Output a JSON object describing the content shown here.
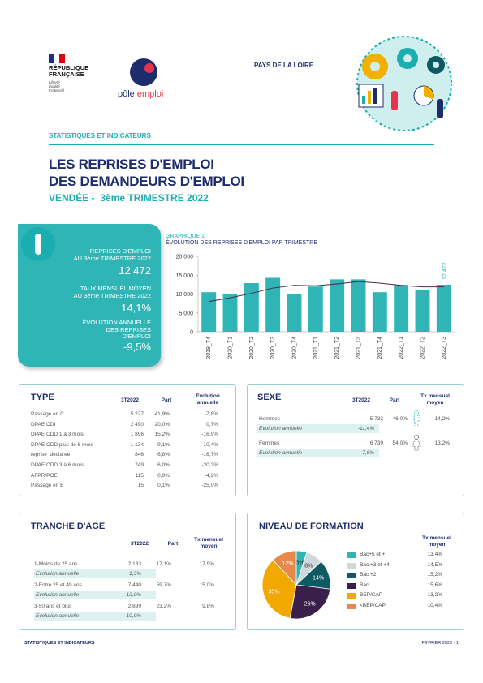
{
  "header": {
    "republic": [
      "RÉPUBLIQUE",
      "FRANÇAISE"
    ],
    "motto": [
      "Liberté",
      "Égalité",
      "Fraternité"
    ],
    "pe_logo": [
      "pôle",
      "emploi"
    ],
    "region": "PAYS DE LA LOIRE",
    "section": "STATISTIQUES ET INDICATEURS",
    "title_1": "LES REPRISES D'EMPLOI",
    "title_2": "DES DEMANDEURS D'EMPLOI",
    "dept": "VENDÉE -",
    "period": "3ème TRIMESTRE 2022"
  },
  "kpis": {
    "k1_label_1": "REPRISES D'EMPLOI",
    "k1_label_2": "AU 3ème TRIMESTRE 2022",
    "k1_value": "12 472",
    "k2_label_1": "TAUX MENSUEL MOYEN",
    "k2_label_2": "AU 3ème TRIMESTRE 2022",
    "k2_value": "14,1%",
    "k3_label_1": "ÉVOLUTION ANNUELLE",
    "k3_label_2": "DES REPRISES",
    "k3_label_3": "D'EMPLOI",
    "k3_value": "-9,5%"
  },
  "graph_label": "GRAPHIQUE 1",
  "graph_title": "ÉVOLUTION DES REPRISES D'EMPLOI PAR TRIMESTRE",
  "chart_data": {
    "type": "bar",
    "categories": [
      "2019_T4",
      "2020_T1",
      "2020_T2",
      "2020_T3",
      "2020_T4",
      "2021_T1",
      "2021_T2",
      "2021_T3",
      "2021_T4",
      "2022_T1",
      "2022_T2",
      "2022_T3"
    ],
    "values": [
      10500,
      10100,
      12900,
      14300,
      10000,
      12000,
      13900,
      13900,
      10500,
      12400,
      11200,
      12472
    ],
    "trend": [
      8000,
      9000,
      10200,
      11600,
      12300,
      12200,
      12700,
      13300,
      12900,
      12300,
      11900,
      11900
    ],
    "yticks": [
      "0",
      "5 000",
      "10 000",
      "15 000",
      "20 000"
    ],
    "ylim": [
      0,
      20000
    ],
    "last_label": "12 472",
    "colors": {
      "bar": "#2fb5b6",
      "trend": "#4a2a4a"
    }
  },
  "type_table": {
    "title": "TYPE",
    "col_period": "3T2022",
    "col_part": "Part",
    "col_evo": "Évolution annuelle",
    "rows": [
      {
        "label": "Passage en C",
        "value": "5 227",
        "part": "41,9%",
        "evo": "-7,8%"
      },
      {
        "label": "DPAE CDI",
        "value": "2 490",
        "part": "20,0%",
        "evo": "0,7%"
      },
      {
        "label": "DPAE CDD 1 à 3 mois",
        "value": "1 896",
        "part": "15,2%",
        "evo": "-16,9%"
      },
      {
        "label": "DPAE CDD plus de 6 mois",
        "value": "1 134",
        "part": "9,1%",
        "evo": "-10,4%"
      },
      {
        "label": "reprise_declaree",
        "value": "846",
        "part": "6,8%",
        "evo": "-16,7%"
      },
      {
        "label": "DPAE CDD 3 à 6 mois",
        "value": "749",
        "part": "6,0%",
        "evo": "-20,2%"
      },
      {
        "label": "AFPR/POE",
        "value": "115",
        "part": "0,9%",
        "evo": "-4,2%"
      },
      {
        "label": "Passage en E",
        "value": "15",
        "part": "0,1%",
        "evo": "-25,0%"
      }
    ]
  },
  "sexe_table": {
    "title": "SEXE",
    "col_period": "3T2022",
    "col_part": "Part",
    "col_rate": "Tx mensuel moyen",
    "rows": [
      {
        "label": "Hommes",
        "value": "5 733",
        "part": "46,0%",
        "rate": "14,2%",
        "evo_label": "Evolution annuelle",
        "evo": "-11,4%"
      },
      {
        "label": "Femmes",
        "value": "6 739",
        "part": "54,0%",
        "rate": "13,2%",
        "evo_label": "Evolution annuelle",
        "evo": "-7,8%"
      }
    ]
  },
  "age_table": {
    "title": "TRANCHE D'AGE",
    "col_period": "3T2022",
    "col_part": "Part",
    "col_rate": "Tx mensuel moyen",
    "rows": [
      {
        "label": "1-Moins de 25 ans",
        "value": "2 133",
        "part": "17,1%",
        "rate": "17,9%",
        "evo_label": "Evolution annuelle",
        "evo": "1,3%"
      },
      {
        "label": "2-Entre 25 et 49 ans",
        "value": "7 440",
        "part": "59,7%",
        "rate": "15,0%",
        "evo_label": "Evolution annuelle",
        "evo": "-12,0%"
      },
      {
        "label": "3-50 ans et plus",
        "value": "2 899",
        "part": "23,2%",
        "rate": "9,8%",
        "evo_label": "Evolution annuelle",
        "evo": "-10,0%"
      }
    ]
  },
  "formation": {
    "title": "NIVEAU DE FORMATION",
    "col_rate": "Tx mensuel moyen",
    "slices": [
      {
        "label": "Bac+5 et +",
        "pct": 5,
        "pct_label": "5%",
        "rate": "13,4%",
        "color": "#2fb5b6"
      },
      {
        "label": "Bac +3 et +4",
        "pct": 8,
        "pct_label": "8%",
        "rate": "14,5%",
        "color": "#cfd8da"
      },
      {
        "label": "Bac +2",
        "pct": 14,
        "pct_label": "14%",
        "rate": "15,2%",
        "color": "#0e5a63"
      },
      {
        "label": "Bac",
        "pct": 26,
        "pct_label": "26%",
        "rate": "15,6%",
        "color": "#3a1f4a"
      },
      {
        "label": "BEP/CAP",
        "pct": 35,
        "pct_label": "35%",
        "rate": "13,2%",
        "color": "#f2a800"
      },
      {
        "label": "<BEP/CAP",
        "pct": 12,
        "pct_label": "12%",
        "rate": "10,4%",
        "color": "#e58a4c"
      }
    ]
  },
  "footer": {
    "left": "STATISTIQUES ET INDICATEURS",
    "right": "FÉVRIER 2023 - 1"
  }
}
